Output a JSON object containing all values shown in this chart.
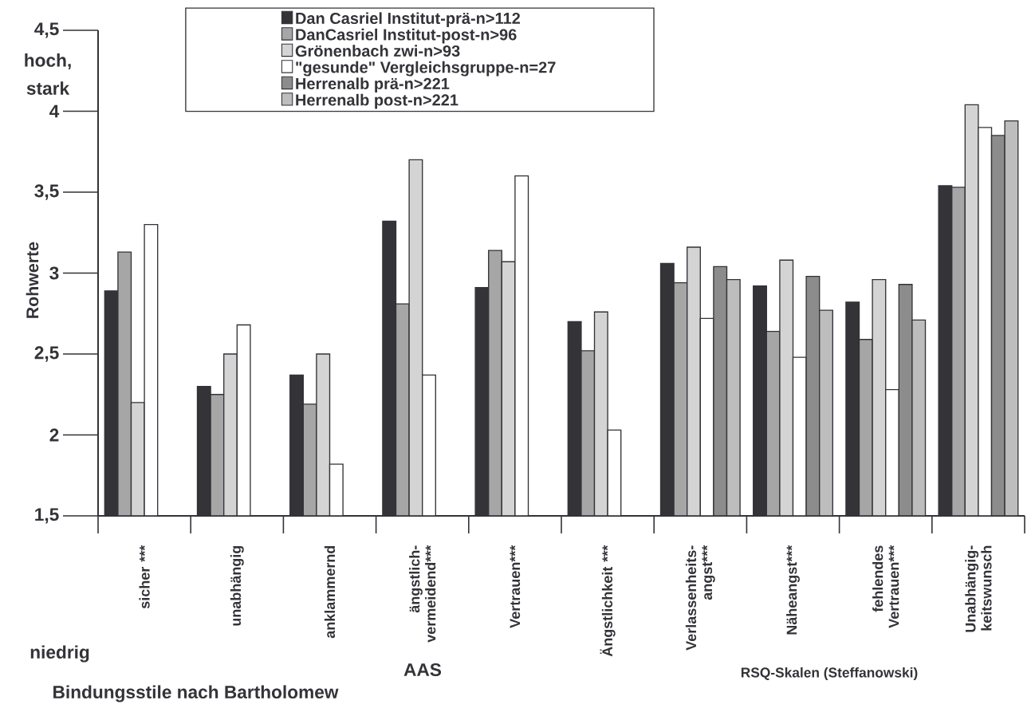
{
  "chart_data": {
    "type": "bar",
    "ylabel": "Rohwerte",
    "categories": [
      "sicher ***",
      "unabhängig",
      "anklammernd",
      "ängstlich-vermeidend***",
      "Vertrauen***",
      "Ängstlichkeit ***",
      "Verlassenheits-angst***",
      "Näheangst***",
      "fehlendes Vertrauen***",
      "Unabhängig-keitswunsch"
    ],
    "series": [
      {
        "name": "Dan Casriel Institut-prä-n>112",
        "color": "#333338",
        "values": [
          2.89,
          2.3,
          2.37,
          3.32,
          2.91,
          2.7,
          3.06,
          2.92,
          2.82,
          3.54
        ]
      },
      {
        "name": "DanCasriel Institut-post-n>96",
        "color": "#a6a6a6",
        "values": [
          3.13,
          2.25,
          2.19,
          2.81,
          3.14,
          2.52,
          2.94,
          2.64,
          2.59,
          3.53
        ]
      },
      {
        "name": "Grönenbach zwi-n>93",
        "color": "#d4d4d4",
        "values": [
          2.2,
          2.5,
          2.5,
          3.7,
          3.07,
          2.76,
          3.16,
          3.08,
          2.96,
          4.04
        ]
      },
      {
        "name": "\"gesunde\" Vergleichsgruppe-n=27",
        "color": "#ffffff",
        "values": [
          3.3,
          2.68,
          1.82,
          2.37,
          3.6,
          2.03,
          2.72,
          2.48,
          2.28,
          3.9
        ]
      },
      {
        "name": "Herrenalb prä-n>221",
        "color": "#8c8c8c",
        "values": [
          null,
          null,
          null,
          null,
          null,
          null,
          3.04,
          2.98,
          2.93,
          3.85
        ]
      },
      {
        "name": "Herrenalb post-n>221",
        "color": "#bdbdbd",
        "values": [
          null,
          null,
          null,
          null,
          null,
          null,
          2.96,
          2.77,
          2.71,
          3.94
        ]
      }
    ],
    "ylim": [
      1.5,
      4.5
    ],
    "yticks": [
      {
        "value": 1.5,
        "label": "1,5"
      },
      2,
      {
        "value": 2.5,
        "label": "2,5"
      },
      3,
      {
        "value": 3.5,
        "label": "3,5"
      },
      4,
      {
        "value": 4.5,
        "label": "4,5"
      }
    ],
    "legend": "top",
    "annotations": [
      "hoch, stark",
      "niedrig",
      "Bindungsstile nach Bartholomew",
      "AAS",
      "RSQ-Skalen (Steffanowski)"
    ]
  }
}
